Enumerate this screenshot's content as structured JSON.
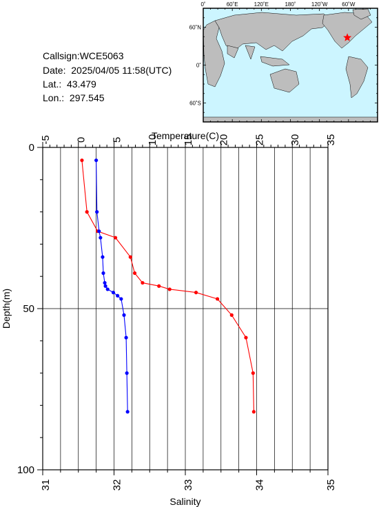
{
  "station": {
    "callsign": "Callsign:WCE5063",
    "date": "Date:  2025/04/05 11:58(UTC)",
    "lat": "Lat.:  43.479",
    "lon": "Lon.:  297.545"
  },
  "map": {
    "lon_labels": [
      "0˚",
      "60˚E",
      "120˚E",
      "180˚",
      "120˚W",
      "60˚W"
    ],
    "lat_labels": [
      "60˚N",
      "0˚",
      "60˚S"
    ],
    "marker_color": "#ff0000",
    "ocean_color": "#ccf5ff",
    "land_color": "#bdbdbd",
    "marker_lat": 43.479,
    "marker_lon": 297.545
  },
  "chart_data": {
    "type": "line",
    "top_axis_title": "Temperature(C)",
    "bottom_axis_title": "Salinity",
    "yaxis_title": "Depth(m)",
    "temperature_ticks": [
      "-5",
      "0",
      "5",
      "10",
      "15",
      "20",
      "25",
      "30",
      "35"
    ],
    "salinity_ticks": [
      "31",
      "32",
      "33",
      "34",
      "35"
    ],
    "depth_ticks": [
      "0",
      "50",
      "100"
    ],
    "xlim_temperature": [
      -5,
      35
    ],
    "xlim_salinity": [
      31,
      35
    ],
    "ylim_depth": [
      0,
      100
    ],
    "depth_inverted": true,
    "series": [
      {
        "name": "",
        "quantity": "temperature",
        "color": "#ff0000",
        "points": [
          [
            0.5,
            4
          ],
          [
            1.2,
            20
          ],
          [
            2.7,
            26
          ],
          [
            5.2,
            28
          ],
          [
            7.3,
            34
          ],
          [
            7.9,
            39
          ],
          [
            9.0,
            42
          ],
          [
            11.3,
            43
          ],
          [
            12.8,
            44
          ],
          [
            16.5,
            45
          ],
          [
            19.5,
            47
          ],
          [
            21.5,
            52
          ],
          [
            23.5,
            59
          ],
          [
            24.5,
            70
          ],
          [
            24.6,
            82
          ]
        ]
      },
      {
        "name": "",
        "quantity": "salinity",
        "color": "#0000ff",
        "points": [
          [
            31.75,
            4
          ],
          [
            31.76,
            20
          ],
          [
            31.79,
            26
          ],
          [
            31.81,
            28
          ],
          [
            31.84,
            34
          ],
          [
            31.85,
            39
          ],
          [
            31.87,
            42
          ],
          [
            31.88,
            43
          ],
          [
            31.91,
            44
          ],
          [
            31.99,
            45
          ],
          [
            32.05,
            46
          ],
          [
            32.1,
            47
          ],
          [
            32.14,
            52
          ],
          [
            32.17,
            59
          ],
          [
            32.18,
            70
          ],
          [
            32.19,
            82
          ]
        ]
      }
    ],
    "grid": true
  }
}
